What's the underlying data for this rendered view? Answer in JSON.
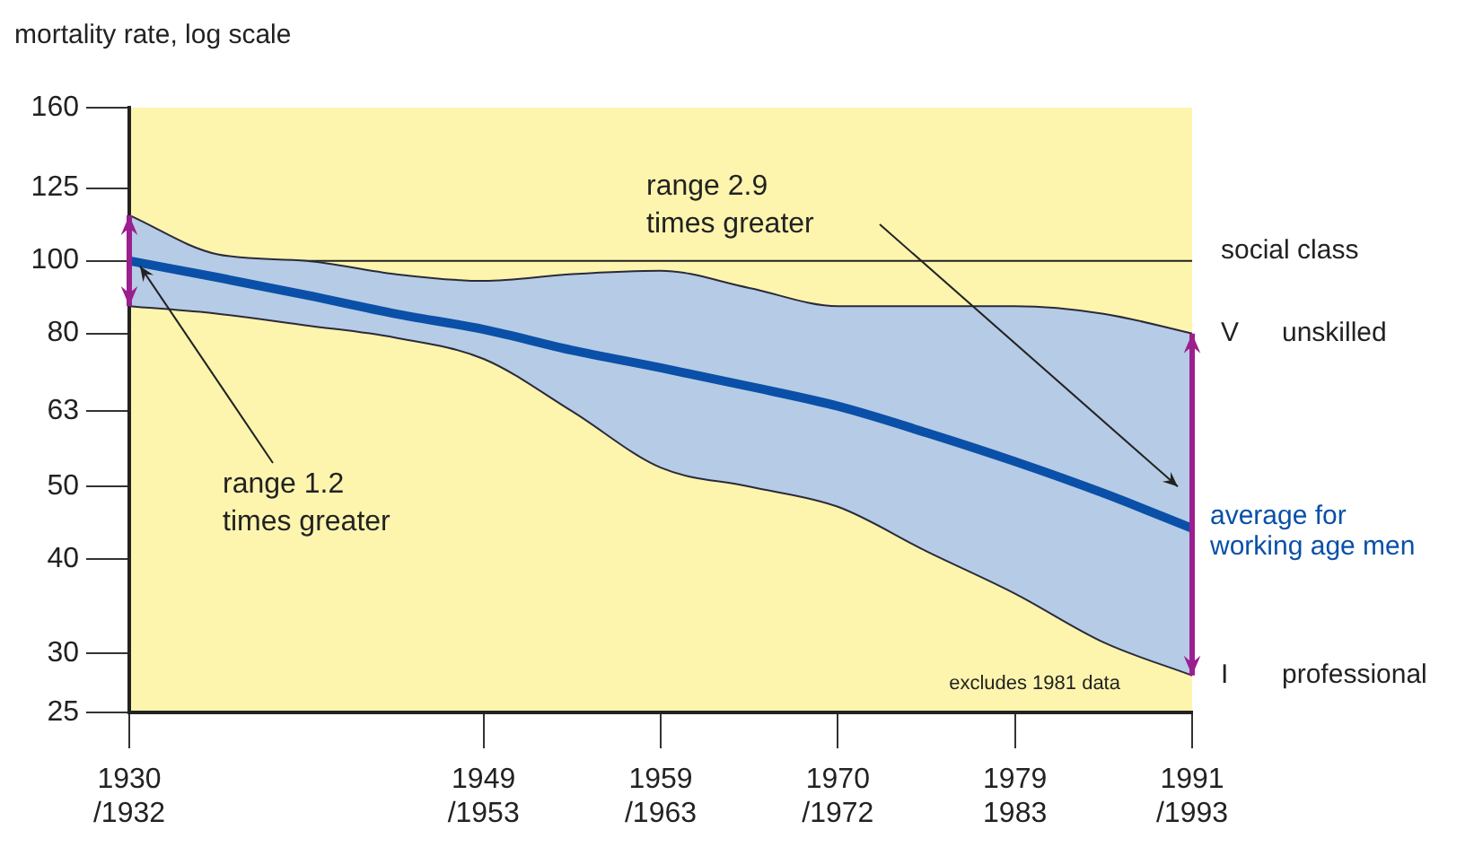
{
  "chart_data": {
    "type": "line",
    "ylabel": "mortality rate, log scale",
    "log": "y",
    "categories": [
      "1930 /1932",
      null,
      null,
      null,
      "1949 /1953",
      null,
      "1959 /1963",
      null,
      "1970 /1972",
      null,
      "1979 1983",
      null,
      "1991 /1993"
    ],
    "ylim": [
      25,
      160
    ],
    "yticks": [
      25,
      30,
      40,
      50,
      63,
      80,
      100,
      125,
      160
    ],
    "series": [
      {
        "name": "V unskilled",
        "color": "#2a2a3a",
        "values": [
          115,
          102,
          100,
          96,
          94,
          96,
          97,
          92,
          87,
          87,
          87,
          85,
          80
        ]
      },
      {
        "name": "I professional",
        "color": "#2a2a3a",
        "values": [
          87,
          85,
          82,
          79,
          74,
          63,
          53,
          50,
          47,
          41,
          36,
          31,
          28
        ]
      },
      {
        "name": "average for working age men",
        "color": "#0a50a8",
        "values": [
          100,
          95,
          90,
          85,
          81,
          76,
          72,
          68,
          64,
          59,
          54,
          49,
          44
        ],
        "upper": [
          115,
          102,
          100,
          96,
          94,
          96,
          97,
          92,
          87,
          87,
          87,
          85,
          80
        ],
        "lower": [
          87,
          85,
          82,
          79,
          74,
          63,
          53,
          50,
          47,
          41,
          36,
          31,
          28
        ]
      }
    ],
    "ref_lines": [
      {
        "axis": "y",
        "value": 100,
        "color": "#222222"
      }
    ],
    "legend_title": "social class",
    "annotations": [
      {
        "text": "range 1.2 times greater",
        "x": "1930 /1932",
        "y": 100
      },
      "range 2.9 times greater",
      "excludes 1981 data"
    ],
    "grid": false,
    "legend": false,
    "marker": "none",
    "line_style": "solid"
  }
}
